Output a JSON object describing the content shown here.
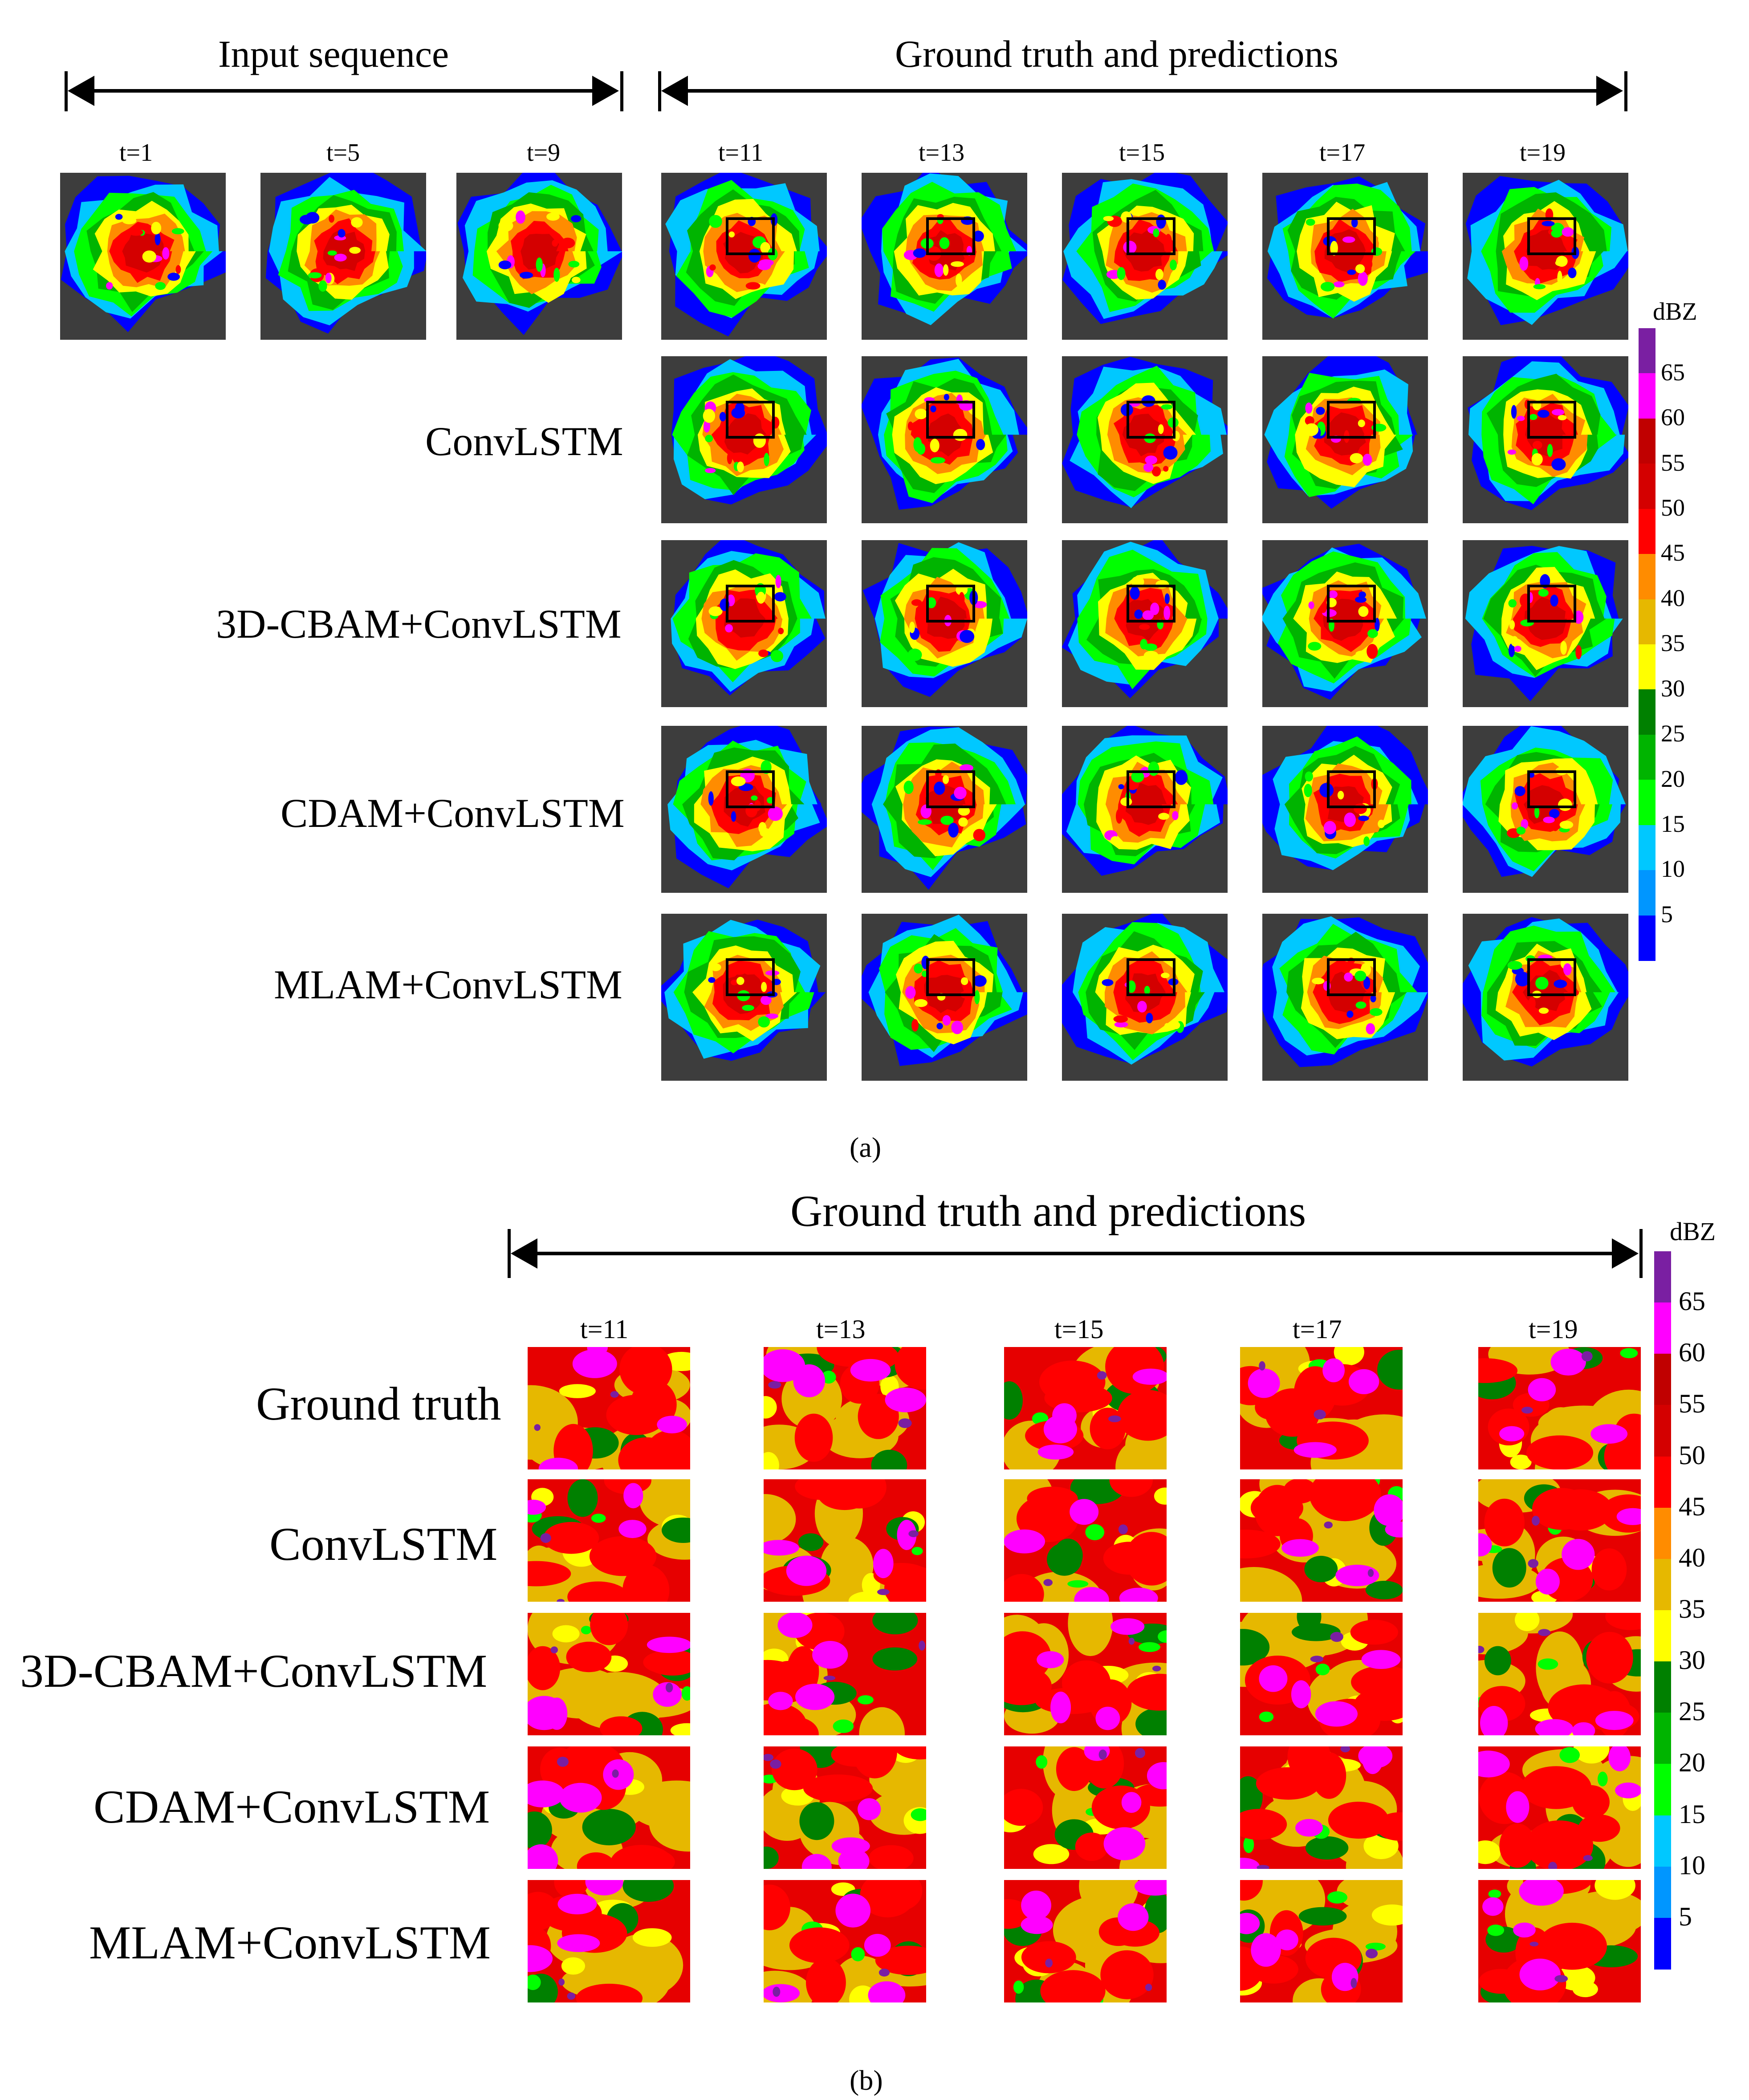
{
  "part_a": {
    "input_header": "Input sequence",
    "output_header": "Ground truth and predictions",
    "input_times": [
      "t=1",
      "t=5",
      "t=9"
    ],
    "output_times": [
      "t=11",
      "t=13",
      "t=15",
      "t=17",
      "t=19"
    ],
    "row_labels": [
      "ConvLSTM",
      "3D-CBAM+ConvLSTM",
      "CDAM+ConvLSTM",
      "MLAM+ConvLSTM"
    ],
    "caption": "(a)"
  },
  "part_b": {
    "header": "Ground truth and predictions",
    "times": [
      "t=11",
      "t=13",
      "t=15",
      "t=17",
      "t=19"
    ],
    "row_labels": [
      "Ground truth",
      "ConvLSTM",
      "3D-CBAM+ConvLSTM",
      "CDAM+ConvLSTM",
      "MLAM+ConvLSTM"
    ],
    "caption": "(b)"
  },
  "colorbar": {
    "unit": "dBZ",
    "ticks": [
      "65",
      "60",
      "55",
      "50",
      "45",
      "40",
      "35",
      "30",
      "25",
      "20",
      "15",
      "10",
      "5"
    ],
    "colors": [
      "#7a1fa2",
      "#ff00ff",
      "#c00000",
      "#d40000",
      "#ff0000",
      "#ff8c00",
      "#e6b800",
      "#ffff00",
      "#008000",
      "#00b400",
      "#00ff00",
      "#00c8ff",
      "#0096ff",
      "#0000ff"
    ]
  }
}
